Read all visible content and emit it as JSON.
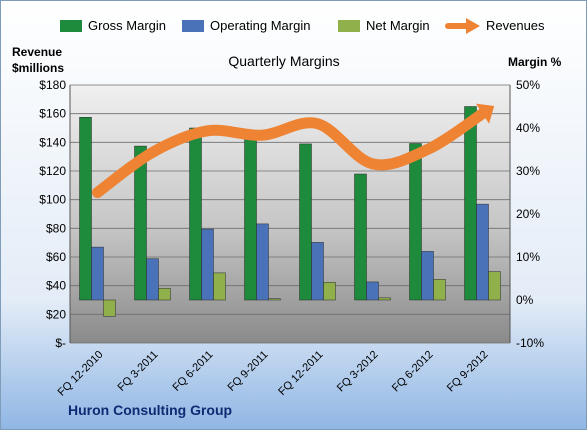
{
  "colors": {
    "gross": "#1e8a3c",
    "operating": "#4a72b8",
    "net": "#8fb04a",
    "revenue": "#ee8433",
    "bg_top": "#ffffff",
    "bg_bottom": "#8fb6e4"
  },
  "chart_data": {
    "type": "bar",
    "title": "Quarterly Margins",
    "left_axis_label_line1": "Revenue",
    "left_axis_label_line2": "$millions",
    "right_axis_label": "Margin %",
    "footer": "Huron Consulting Group",
    "categories": [
      "FQ 12-2010",
      "FQ 3-2011",
      "FQ 6-2011",
      "FQ 9-2011",
      "FQ 12-2011",
      "FQ 3-2012",
      "FQ 6-2012",
      "FQ 9-2012"
    ],
    "left_ticks": [
      "$-",
      "$20",
      "$40",
      "$60",
      "$80",
      "$100",
      "$120",
      "$140",
      "$160",
      "$180"
    ],
    "right_ticks": [
      "-10%",
      "0%",
      "10%",
      "20%",
      "30%",
      "40%",
      "50%"
    ],
    "ylim_left": [
      0,
      180
    ],
    "ylim_right": [
      -10,
      50
    ],
    "series": [
      {
        "name": "Gross Margin",
        "axis": "right",
        "values": [
          42.5,
          35.8,
          40.0,
          39.3,
          36.3,
          29.3,
          36.4,
          45.0
        ]
      },
      {
        "name": "Operating Margin",
        "axis": "right",
        "values": [
          12.3,
          9.6,
          16.5,
          17.7,
          13.4,
          4.2,
          11.3,
          22.3
        ]
      },
      {
        "name": "Net Margin",
        "axis": "right",
        "values": [
          -3.8,
          2.7,
          6.3,
          0.3,
          4.1,
          0.5,
          4.8,
          6.6
        ]
      },
      {
        "name": "Revenues",
        "axis": "left",
        "values": [
          105,
          133,
          148,
          145,
          153,
          125,
          135,
          160
        ]
      }
    ],
    "grid": true,
    "legend": "top"
  }
}
